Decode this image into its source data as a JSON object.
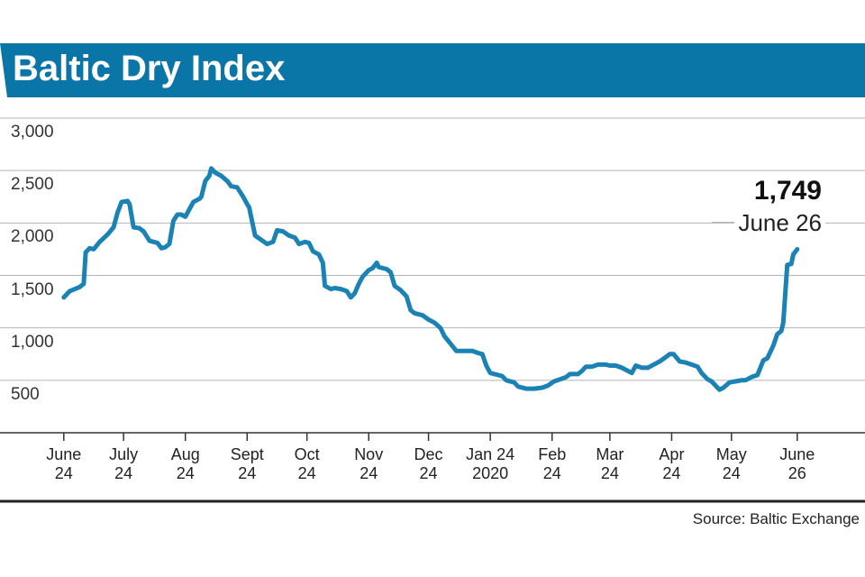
{
  "chart_data": {
    "type": "line",
    "title": "Baltic Dry Index",
    "source": "Source: Baltic Exchange",
    "color": "#1a82b4",
    "grid": true,
    "x": [
      0,
      3,
      8,
      10,
      11,
      13,
      15,
      18,
      22,
      25,
      27,
      29,
      32,
      33,
      35,
      38,
      40,
      43,
      47,
      49,
      51,
      53,
      55,
      57,
      59,
      61,
      63,
      65,
      68,
      69,
      71,
      73,
      74,
      76,
      79,
      82,
      84,
      87,
      90,
      92,
      93,
      96,
      99,
      102,
      105,
      107,
      110,
      113,
      116,
      118,
      121,
      123,
      125,
      128,
      130,
      131,
      134,
      136,
      139,
      142,
      144,
      146,
      148,
      150,
      153,
      155,
      157,
      158,
      162,
      164,
      166,
      169,
      172,
      174,
      176,
      180,
      183,
      186,
      189,
      191,
      194,
      197,
      200,
      205,
      208,
      210,
      212,
      214,
      218,
      220,
      222,
      226,
      228,
      232,
      236,
      240,
      243,
      246,
      249,
      252,
      254,
      258,
      260,
      262,
      265,
      268,
      272,
      274,
      277,
      280,
      283,
      285,
      287,
      290,
      293,
      296,
      299,
      302,
      304,
      306,
      309,
      312,
      315,
      318,
      320,
      323,
      325,
      327,
      329,
      331,
      334,
      337,
      340,
      342,
      345,
      348,
      351,
      353,
      356,
      358,
      360,
      361,
      363,
      365,
      366,
      368
    ],
    "values": [
      1290,
      1350,
      1390,
      1420,
      1720,
      1760,
      1750,
      1820,
      1890,
      1960,
      2100,
      2200,
      2210,
      2180,
      1960,
      1950,
      1920,
      1830,
      1810,
      1760,
      1770,
      1800,
      2020,
      2080,
      2080,
      2060,
      2130,
      2200,
      2230,
      2250,
      2400,
      2450,
      2520,
      2480,
      2450,
      2400,
      2350,
      2340,
      2250,
      2180,
      2150,
      1880,
      1840,
      1800,
      1820,
      1930,
      1920,
      1880,
      1860,
      1800,
      1820,
      1810,
      1730,
      1700,
      1620,
      1400,
      1370,
      1380,
      1370,
      1350,
      1290,
      1330,
      1420,
      1490,
      1550,
      1570,
      1620,
      1580,
      1560,
      1530,
      1400,
      1360,
      1300,
      1170,
      1140,
      1120,
      1080,
      1050,
      1000,
      920,
      850,
      780,
      780,
      780,
      760,
      750,
      640,
      570,
      550,
      540,
      500,
      480,
      440,
      420,
      420,
      430,
      450,
      490,
      510,
      530,
      560,
      560,
      590,
      630,
      630,
      650,
      650,
      640,
      640,
      620,
      590,
      570,
      640,
      620,
      620,
      650,
      680,
      720,
      750,
      750,
      680,
      670,
      650,
      630,
      570,
      510,
      490,
      450,
      410,
      430,
      480,
      490,
      500,
      500,
      530,
      550,
      690,
      710,
      830,
      940,
      970,
      1050,
      1600,
      1610,
      1700,
      1749
    ],
    "xlim": [
      -32,
      402
    ],
    "xticks": [
      {
        "value": 0,
        "label": "June\n24"
      },
      {
        "value": 30,
        "label": "July\n24"
      },
      {
        "value": 61,
        "label": "Aug\n24"
      },
      {
        "value": 92,
        "label": "Sept\n24"
      },
      {
        "value": 122,
        "label": "Oct\n24"
      },
      {
        "value": 153,
        "label": "Nov\n24"
      },
      {
        "value": 183,
        "label": "Dec\n24"
      },
      {
        "value": 214,
        "label": "Jan 24\n2020"
      },
      {
        "value": 245,
        "label": "Feb\n24"
      },
      {
        "value": 274,
        "label": "Mar\n24"
      },
      {
        "value": 305,
        "label": "Apr\n24"
      },
      {
        "value": 335,
        "label": "May\n24"
      },
      {
        "value": 368,
        "label": "June\n26"
      }
    ],
    "ylim": [
      0,
      3000
    ],
    "yticks": [
      {
        "value": 500,
        "label": "500"
      },
      {
        "value": 1000,
        "label": "1,000"
      },
      {
        "value": 1500,
        "label": "1,500"
      },
      {
        "value": 2000,
        "label": "2,000"
      },
      {
        "value": 2500,
        "label": "2,500"
      },
      {
        "value": 3000,
        "label": "3,000"
      }
    ],
    "annotations": [
      {
        "text": "1,749"
      },
      {
        "text": "June 26"
      }
    ]
  }
}
